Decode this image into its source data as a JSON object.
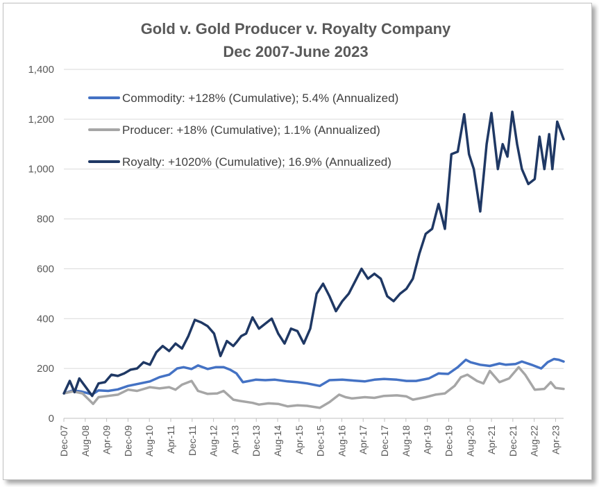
{
  "chart_data": {
    "type": "line",
    "title": "Gold v. Gold Producer v. Royalty Company",
    "subtitle": "Dec 2007-June 2023",
    "xlabel": "",
    "ylabel": "",
    "ylim": [
      0,
      1400
    ],
    "yticks": [
      "0",
      "200",
      "400",
      "600",
      "800",
      "1,000",
      "1,200",
      "1,400"
    ],
    "grid": true,
    "legend_position": "top-left",
    "x_range": [
      2007.917,
      2023.5
    ],
    "tick_labels": [
      "Dec-07",
      "Aug-08",
      "Apr-09",
      "Dec-09",
      "Aug-10",
      "Apr-11",
      "Dec-11",
      "Aug-12",
      "Apr-13",
      "Dec-13",
      "Aug-14",
      "Apr-15",
      "Dec-15",
      "Aug-16",
      "Apr-17",
      "Dec-17",
      "Aug-18",
      "Apr-19",
      "Dec-19",
      "Aug-20",
      "Apr-21",
      "Dec-21",
      "Aug-22",
      "Apr-23"
    ],
    "series": [
      {
        "name": "Commodity: +128% (Cumulative); 5.4% (Annualized)",
        "color": "#4472c4",
        "x": [
          2007.92,
          2008.2,
          2008.45,
          2008.8,
          2009.0,
          2009.3,
          2009.6,
          2009.92,
          2010.3,
          2010.6,
          2010.9,
          2011.2,
          2011.45,
          2011.65,
          2011.9,
          2012.1,
          2012.4,
          2012.65,
          2012.9,
          2013.1,
          2013.3,
          2013.5,
          2013.9,
          2014.2,
          2014.5,
          2014.9,
          2015.2,
          2015.5,
          2015.9,
          2016.2,
          2016.6,
          2016.9,
          2017.3,
          2017.6,
          2017.9,
          2018.3,
          2018.6,
          2018.9,
          2019.3,
          2019.6,
          2019.9,
          2020.2,
          2020.45,
          2020.6,
          2020.9,
          2021.2,
          2021.5,
          2021.7,
          2022.0,
          2022.2,
          2022.5,
          2022.8,
          2023.0,
          2023.2,
          2023.35,
          2023.5
        ],
        "y": [
          100,
          112,
          108,
          96,
          112,
          110,
          116,
          130,
          140,
          148,
          165,
          175,
          200,
          205,
          198,
          212,
          198,
          205,
          205,
          195,
          180,
          145,
          155,
          153,
          155,
          148,
          145,
          140,
          130,
          153,
          155,
          152,
          148,
          155,
          158,
          155,
          150,
          150,
          160,
          180,
          178,
          205,
          235,
          225,
          215,
          210,
          220,
          215,
          218,
          228,
          215,
          200,
          225,
          238,
          235,
          228
        ]
      },
      {
        "name": "Producer: +18% (Cumulative); 1.1% (Annualized)",
        "color": "#a6a6a6",
        "x": [
          2007.92,
          2008.2,
          2008.5,
          2008.83,
          2009.0,
          2009.3,
          2009.6,
          2009.92,
          2010.2,
          2010.6,
          2010.9,
          2011.2,
          2011.4,
          2011.6,
          2011.9,
          2012.1,
          2012.4,
          2012.7,
          2012.9,
          2013.2,
          2013.4,
          2013.8,
          2014.0,
          2014.3,
          2014.6,
          2014.9,
          2015.2,
          2015.5,
          2015.9,
          2016.2,
          2016.5,
          2016.7,
          2016.9,
          2017.3,
          2017.6,
          2017.9,
          2018.3,
          2018.6,
          2018.8,
          2019.2,
          2019.5,
          2019.8,
          2020.1,
          2020.3,
          2020.5,
          2020.8,
          2021.0,
          2021.2,
          2021.5,
          2021.8,
          2022.1,
          2022.3,
          2022.6,
          2022.9,
          2023.1,
          2023.25,
          2023.5
        ],
        "y": [
          100,
          108,
          100,
          58,
          85,
          90,
          95,
          115,
          110,
          125,
          120,
          125,
          115,
          135,
          150,
          110,
          98,
          100,
          110,
          75,
          70,
          62,
          55,
          60,
          58,
          48,
          52,
          50,
          42,
          65,
          95,
          85,
          80,
          85,
          82,
          90,
          92,
          88,
          75,
          85,
          95,
          100,
          130,
          165,
          175,
          150,
          140,
          190,
          145,
          160,
          205,
          175,
          115,
          118,
          145,
          122,
          118
        ]
      },
      {
        "name": "Royalty: +1020% (Cumulative); 16.9% (Annualized)",
        "color": "#1f3864",
        "x": [
          2007.92,
          2008.1,
          2008.25,
          2008.4,
          2008.6,
          2008.8,
          2009.0,
          2009.2,
          2009.4,
          2009.6,
          2009.8,
          2010.0,
          2010.2,
          2010.4,
          2010.6,
          2010.8,
          2011.0,
          2011.2,
          2011.4,
          2011.6,
          2011.8,
          2012.0,
          2012.2,
          2012.4,
          2012.6,
          2012.8,
          2013.0,
          2013.2,
          2013.3,
          2013.45,
          2013.6,
          2013.8,
          2014.0,
          2014.2,
          2014.4,
          2014.6,
          2014.8,
          2015.0,
          2015.2,
          2015.4,
          2015.6,
          2015.8,
          2016.0,
          2016.2,
          2016.4,
          2016.6,
          2016.8,
          2017.0,
          2017.2,
          2017.4,
          2017.6,
          2017.8,
          2018.0,
          2018.2,
          2018.4,
          2018.6,
          2018.8,
          2019.0,
          2019.2,
          2019.4,
          2019.6,
          2019.8,
          2020.0,
          2020.2,
          2020.4,
          2020.55,
          2020.7,
          2020.9,
          2021.1,
          2021.25,
          2021.45,
          2021.6,
          2021.75,
          2021.9,
          2022.05,
          2022.2,
          2022.4,
          2022.6,
          2022.75,
          2022.9,
          2023.05,
          2023.15,
          2023.3,
          2023.5
        ],
        "y": [
          100,
          150,
          105,
          160,
          125,
          90,
          140,
          145,
          175,
          170,
          180,
          195,
          200,
          225,
          215,
          265,
          290,
          270,
          300,
          280,
          330,
          395,
          385,
          370,
          340,
          250,
          310,
          290,
          305,
          330,
          340,
          405,
          360,
          380,
          400,
          340,
          300,
          360,
          350,
          300,
          360,
          500,
          540,
          490,
          430,
          470,
          500,
          550,
          600,
          560,
          580,
          560,
          490,
          470,
          500,
          520,
          560,
          660,
          740,
          760,
          860,
          760,
          1060,
          1070,
          1220,
          1060,
          1000,
          830,
          1100,
          1225,
          1000,
          1100,
          1050,
          1230,
          1100,
          1000,
          940,
          960,
          1130,
          1000,
          1140,
          1000,
          1190,
          1120
        ]
      }
    ]
  }
}
